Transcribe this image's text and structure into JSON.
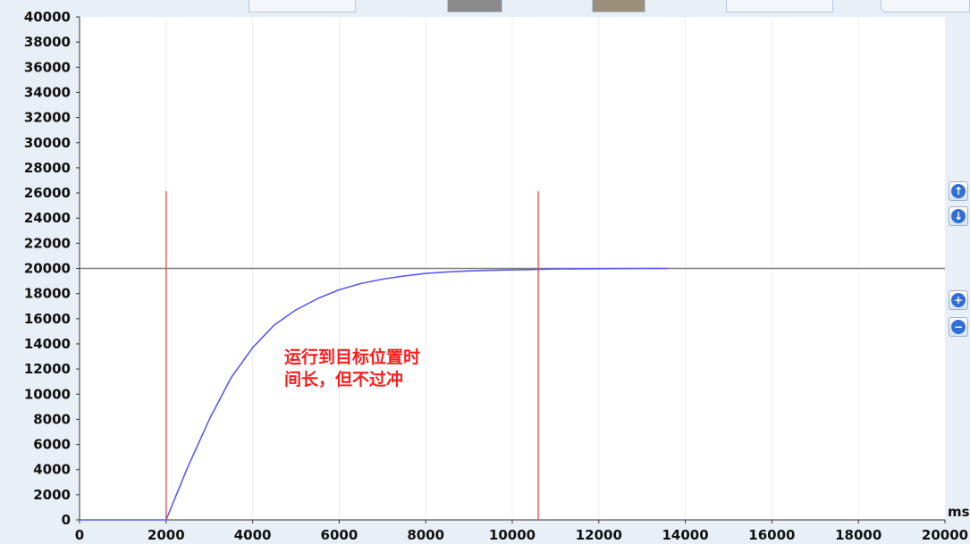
{
  "chart_data": {
    "type": "line",
    "x_unit": "ms",
    "xlim": [
      0,
      20000
    ],
    "ylim": [
      0,
      40000
    ],
    "x_ticks": [
      0,
      2000,
      4000,
      6000,
      8000,
      10000,
      12000,
      14000,
      16000,
      18000,
      20000
    ],
    "y_ticks": [
      0,
      2000,
      4000,
      6000,
      8000,
      10000,
      12000,
      14000,
      16000,
      18000,
      20000,
      22000,
      24000,
      26000,
      28000,
      30000,
      32000,
      34000,
      36000,
      38000,
      40000
    ],
    "grid": true,
    "target_line": {
      "y": 20000,
      "color": "#7f7f7f"
    },
    "markers": [
      {
        "x": 2000,
        "color": "#ff4040"
      },
      {
        "x": 10600,
        "color": "#ff4040"
      }
    ],
    "series": [
      {
        "color": "#5a5af0",
        "x": [
          0,
          2000,
          2500,
          3000,
          3500,
          4000,
          4500,
          5000,
          5500,
          6000,
          6500,
          7000,
          7500,
          8000,
          8500,
          9000,
          9500,
          10000,
          10600,
          11000,
          12000,
          13000,
          13600
        ],
        "y": [
          0,
          0,
          4200,
          8000,
          11300,
          13700,
          15500,
          16700,
          17600,
          18300,
          18800,
          19150,
          19400,
          19600,
          19720,
          19800,
          19850,
          19880,
          19920,
          19960,
          19980,
          20000,
          20000
        ]
      }
    ],
    "annotation": {
      "lines": [
        "运行到目标位置时",
        "间长，但不过冲"
      ],
      "color": "#ff1c1c"
    }
  },
  "side_buttons": [
    {
      "name": "scroll-up",
      "glyph": "↑"
    },
    {
      "name": "scroll-down",
      "glyph": "↓"
    },
    {
      "name": "zoom-in",
      "glyph": "+"
    },
    {
      "name": "zoom-out",
      "glyph": "−"
    }
  ]
}
